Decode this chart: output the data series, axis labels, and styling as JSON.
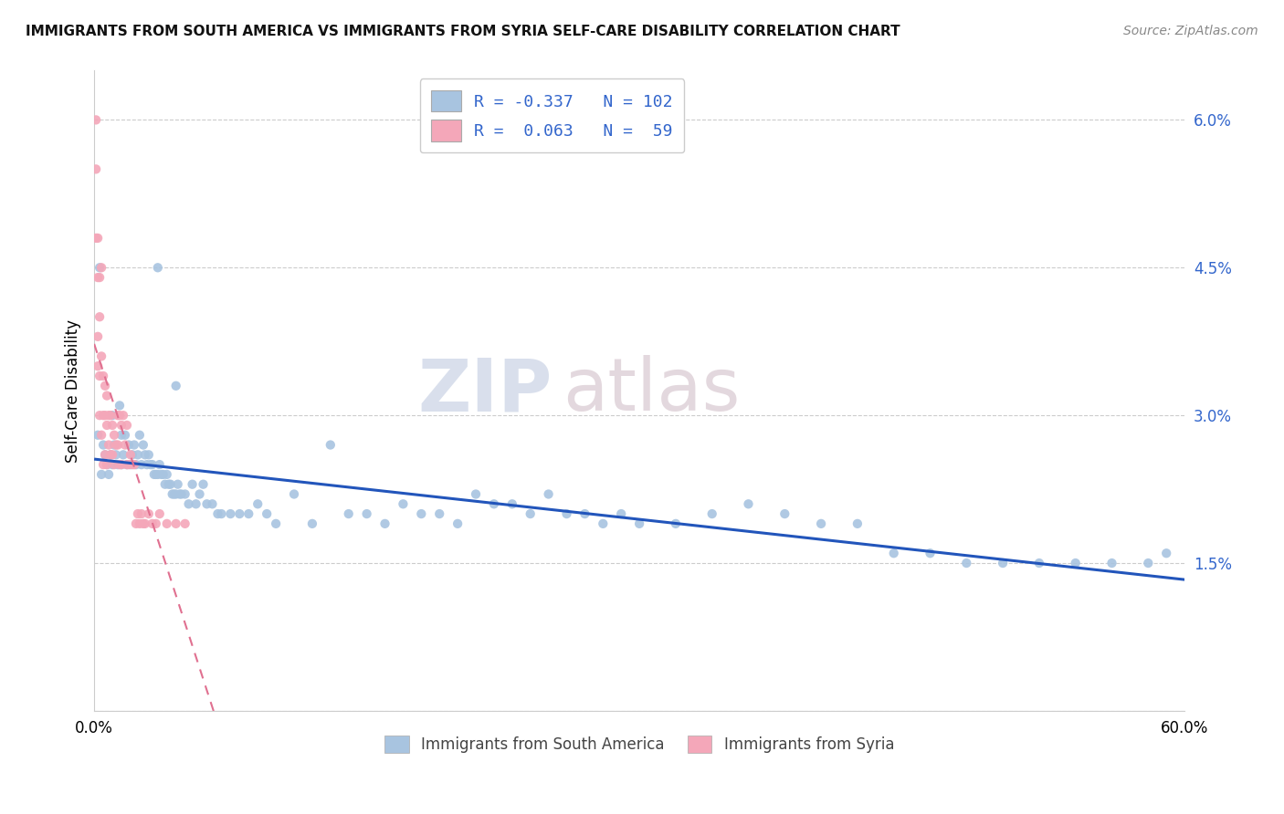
{
  "title": "IMMIGRANTS FROM SOUTH AMERICA VS IMMIGRANTS FROM SYRIA SELF-CARE DISABILITY CORRELATION CHART",
  "source": "Source: ZipAtlas.com",
  "ylabel": "Self-Care Disability",
  "yticks": [
    0.0,
    0.015,
    0.03,
    0.045,
    0.06
  ],
  "ytick_labels": [
    "",
    "1.5%",
    "3.0%",
    "4.5%",
    "6.0%"
  ],
  "xmin": 0.0,
  "xmax": 0.6,
  "ymin": 0.0,
  "ymax": 0.065,
  "r_blue": -0.337,
  "n_blue": 102,
  "r_pink": 0.063,
  "n_pink": 59,
  "blue_color": "#a8c4e0",
  "pink_color": "#f4a7b9",
  "blue_line_color": "#2255bb",
  "pink_line_color": "#e07090",
  "legend_label_blue": "Immigrants from South America",
  "legend_label_pink": "Immigrants from Syria",
  "watermark_zip": "ZIP",
  "watermark_atlas": "atlas",
  "blue_scatter_x": [
    0.002,
    0.003,
    0.004,
    0.005,
    0.006,
    0.007,
    0.008,
    0.009,
    0.01,
    0.01,
    0.011,
    0.012,
    0.013,
    0.014,
    0.015,
    0.015,
    0.016,
    0.017,
    0.018,
    0.019,
    0.02,
    0.021,
    0.022,
    0.023,
    0.024,
    0.025,
    0.026,
    0.027,
    0.028,
    0.029,
    0.03,
    0.031,
    0.032,
    0.033,
    0.034,
    0.035,
    0.036,
    0.037,
    0.038,
    0.039,
    0.04,
    0.041,
    0.042,
    0.043,
    0.044,
    0.045,
    0.046,
    0.047,
    0.048,
    0.05,
    0.052,
    0.054,
    0.056,
    0.058,
    0.06,
    0.062,
    0.065,
    0.068,
    0.07,
    0.075,
    0.08,
    0.085,
    0.09,
    0.095,
    0.1,
    0.11,
    0.12,
    0.13,
    0.14,
    0.15,
    0.16,
    0.17,
    0.18,
    0.19,
    0.2,
    0.21,
    0.22,
    0.23,
    0.24,
    0.25,
    0.26,
    0.27,
    0.28,
    0.29,
    0.3,
    0.32,
    0.34,
    0.36,
    0.38,
    0.4,
    0.42,
    0.44,
    0.46,
    0.48,
    0.5,
    0.52,
    0.54,
    0.56,
    0.58,
    0.59,
    0.035,
    0.045
  ],
  "blue_scatter_y": [
    0.028,
    0.045,
    0.024,
    0.027,
    0.026,
    0.025,
    0.024,
    0.026,
    0.025,
    0.03,
    0.027,
    0.026,
    0.025,
    0.031,
    0.028,
    0.025,
    0.026,
    0.028,
    0.025,
    0.027,
    0.025,
    0.026,
    0.027,
    0.025,
    0.026,
    0.028,
    0.025,
    0.027,
    0.026,
    0.025,
    0.026,
    0.025,
    0.025,
    0.024,
    0.024,
    0.024,
    0.025,
    0.024,
    0.024,
    0.023,
    0.024,
    0.023,
    0.023,
    0.022,
    0.022,
    0.022,
    0.023,
    0.022,
    0.022,
    0.022,
    0.021,
    0.023,
    0.021,
    0.022,
    0.023,
    0.021,
    0.021,
    0.02,
    0.02,
    0.02,
    0.02,
    0.02,
    0.021,
    0.02,
    0.019,
    0.022,
    0.019,
    0.027,
    0.02,
    0.02,
    0.019,
    0.021,
    0.02,
    0.02,
    0.019,
    0.022,
    0.021,
    0.021,
    0.02,
    0.022,
    0.02,
    0.02,
    0.019,
    0.02,
    0.019,
    0.019,
    0.02,
    0.021,
    0.02,
    0.019,
    0.019,
    0.016,
    0.016,
    0.015,
    0.015,
    0.015,
    0.015,
    0.015,
    0.015,
    0.016,
    0.045,
    0.033
  ],
  "pink_scatter_x": [
    0.001,
    0.001,
    0.001,
    0.002,
    0.002,
    0.002,
    0.002,
    0.003,
    0.003,
    0.003,
    0.003,
    0.004,
    0.004,
    0.004,
    0.005,
    0.005,
    0.005,
    0.006,
    0.006,
    0.006,
    0.007,
    0.007,
    0.007,
    0.008,
    0.008,
    0.009,
    0.009,
    0.01,
    0.01,
    0.011,
    0.011,
    0.012,
    0.013,
    0.013,
    0.014,
    0.014,
    0.015,
    0.015,
    0.016,
    0.017,
    0.018,
    0.018,
    0.019,
    0.02,
    0.021,
    0.022,
    0.023,
    0.024,
    0.025,
    0.026,
    0.027,
    0.028,
    0.03,
    0.032,
    0.034,
    0.036,
    0.04,
    0.045,
    0.05
  ],
  "pink_scatter_y": [
    0.06,
    0.055,
    0.048,
    0.048,
    0.044,
    0.038,
    0.035,
    0.044,
    0.04,
    0.034,
    0.03,
    0.045,
    0.036,
    0.028,
    0.034,
    0.03,
    0.025,
    0.033,
    0.03,
    0.026,
    0.032,
    0.029,
    0.025,
    0.03,
    0.027,
    0.03,
    0.026,
    0.029,
    0.026,
    0.028,
    0.025,
    0.027,
    0.03,
    0.027,
    0.03,
    0.025,
    0.029,
    0.025,
    0.03,
    0.027,
    0.029,
    0.025,
    0.025,
    0.026,
    0.025,
    0.025,
    0.019,
    0.02,
    0.019,
    0.02,
    0.019,
    0.019,
    0.02,
    0.019,
    0.019,
    0.02,
    0.019,
    0.019,
    0.019
  ]
}
